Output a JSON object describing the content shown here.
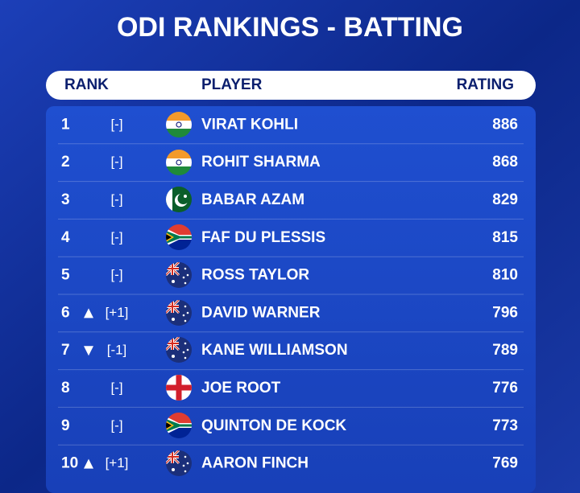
{
  "title": "ODI RANKINGS - BATTING",
  "table": {
    "header": [
      "RANK",
      "PLAYER",
      "RATING"
    ],
    "rows": [
      [
        1,
        "[-]",
        "VIRAT KOHLI",
        886
      ],
      [
        2,
        "[-]",
        "ROHIT SHARMA",
        868
      ],
      [
        3,
        "[-]",
        "BABAR AZAM",
        829
      ],
      [
        4,
        "[-]",
        "FAF DU PLESSIS",
        815
      ],
      [
        5,
        "[-]",
        "ROSS TAYLOR",
        810
      ],
      [
        6,
        "[+1]",
        "DAVID WARNER",
        796
      ],
      [
        7,
        "[-1]",
        "KANE WILLIAMSON",
        789
      ],
      [
        8,
        "[-]",
        "JOE ROOT",
        776
      ],
      [
        9,
        "[-]",
        "QUINTON DE KOCK",
        773
      ],
      [
        10,
        "[+1]",
        "AARON FINCH",
        769
      ]
    ]
  }
}
